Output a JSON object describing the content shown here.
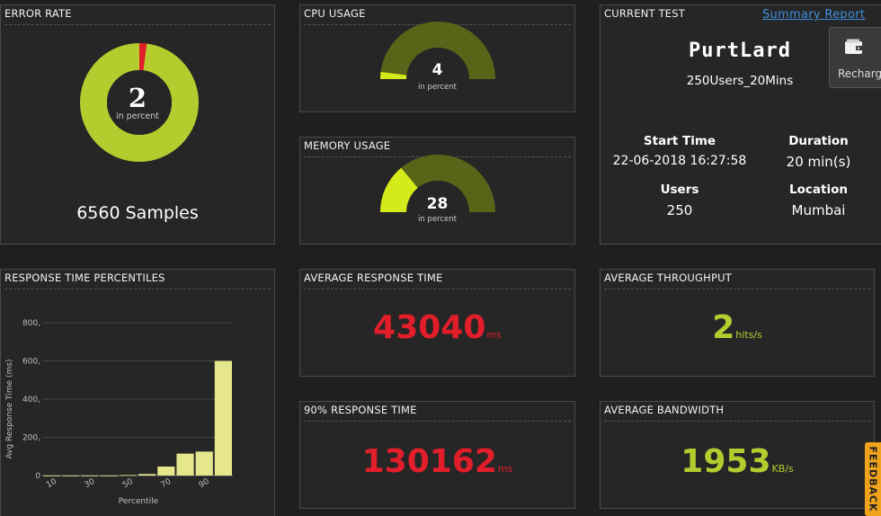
{
  "error_rate": {
    "title": "ERROR RATE",
    "value": "2",
    "unit": "in percent",
    "percent": 2,
    "samples": "6560 Samples"
  },
  "cpu": {
    "title": "CPU USAGE",
    "value": "4",
    "unit": "in percent",
    "percent": 4
  },
  "memory": {
    "title": "MEMORY USAGE",
    "value": "28",
    "unit": "in percent",
    "percent": 28
  },
  "current_test": {
    "title": "CURRENT TEST",
    "summary_link": "Summary Report",
    "logo_text": "PurtLard",
    "test_name": "250Users_20Mins",
    "start_time_label": "Start Time",
    "start_time": "22-06-2018 16:27:58",
    "duration_label": "Duration",
    "duration": "20 min(s)",
    "users_label": "Users",
    "users": "250",
    "location_label": "Location",
    "location": "Mumbai"
  },
  "recharge": {
    "label": "Recharg"
  },
  "feedback": {
    "label": "FEEDBACK"
  },
  "avg_response": {
    "title": "AVERAGE RESPONSE TIME",
    "value": "43040",
    "unit": "ms"
  },
  "p90_response": {
    "title": "90% RESPONSE TIME",
    "value": "130162",
    "unit": "ms"
  },
  "avg_throughput": {
    "title": "AVERAGE THROUGHPUT",
    "value": "2",
    "unit": "hits/s"
  },
  "avg_bandwidth": {
    "title": "AVERAGE BANDWIDTH",
    "value": "1953",
    "unit": "KB/s"
  },
  "percentiles": {
    "title": "RESPONSE TIME PERCENTILES",
    "chart_data": {
      "type": "bar",
      "xlabel": "Percentile",
      "ylabel": "Avg Response Time (ms)",
      "ylim": [
        0,
        800
      ],
      "yticks": [
        "0",
        "200",
        "400",
        "600",
        "800"
      ],
      "xtick_labels": [
        "10",
        "30",
        "50",
        "70",
        "90"
      ],
      "categories": [
        10,
        20,
        30,
        40,
        50,
        60,
        70,
        80,
        90,
        100
      ],
      "values": [
        0,
        0,
        0,
        0,
        3,
        8,
        47,
        115,
        125,
        600
      ],
      "bar_color": "#e6e68c"
    }
  },
  "colors": {
    "lime": "#b5cc2e",
    "olive": "#5a6418",
    "red": "#e21e2a",
    "green": "#b5cc2e",
    "bright": "#d4ea1a"
  }
}
